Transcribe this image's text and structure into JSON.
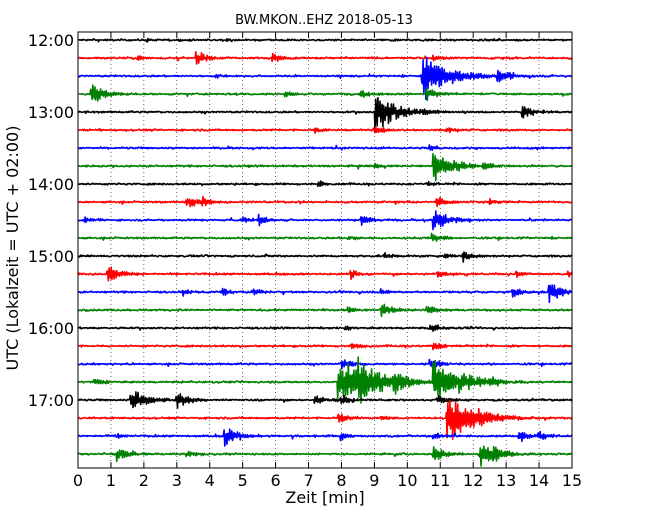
{
  "chart_data": {
    "type": "line",
    "chart_kind": "helicorder (seismogram drum plot)",
    "title": "BW.MKON..EHZ 2018-05-13",
    "xlabel": "Zeit  [min]",
    "ylabel": "UTC (Lokalzeit = UTC + 02:00)",
    "xlim": [
      0,
      15
    ],
    "x_ticks": [
      "0",
      "1",
      "2",
      "3",
      "4",
      "5",
      "6",
      "7",
      "8",
      "9",
      "10",
      "11",
      "12",
      "13",
      "14",
      "15"
    ],
    "y_ticks": [
      "12:00",
      "13:00",
      "14:00",
      "15:00",
      "16:00",
      "17:00"
    ],
    "grid": "vertical dotted lines at each minute",
    "line_interval_minutes": 15,
    "trace_colors": [
      "#000000",
      "#ff0000",
      "#0000ff",
      "#008000"
    ],
    "traces": [
      {
        "start": "12:00",
        "color": "#000000",
        "events": [
          {
            "t": 2.1,
            "amp": 0.2
          },
          {
            "t": 4.5,
            "amp": 0.15
          },
          {
            "t": 9.6,
            "amp": 0.2
          }
        ]
      },
      {
        "start": "12:15",
        "color": "#ff0000",
        "events": [
          {
            "t": 1.8,
            "amp": 0.4
          },
          {
            "t": 3.6,
            "amp": 0.7
          },
          {
            "t": 5.9,
            "amp": 0.5
          },
          {
            "t": 10.8,
            "amp": 0.3
          }
        ]
      },
      {
        "start": "12:30",
        "color": "#0000ff",
        "events": [
          {
            "t": 4.2,
            "amp": 0.2
          },
          {
            "t": 10.45,
            "amp": 2.4
          },
          {
            "t": 12.75,
            "amp": 0.7
          }
        ]
      },
      {
        "start": "12:45",
        "color": "#008000",
        "events": [
          {
            "t": 0.4,
            "amp": 1.0
          },
          {
            "t": 6.3,
            "amp": 0.3
          },
          {
            "t": 8.6,
            "amp": 0.5
          },
          {
            "t": 10.6,
            "amp": 0.6
          }
        ]
      },
      {
        "start": "13:00",
        "color": "#000000",
        "events": [
          {
            "t": 9.05,
            "amp": 1.8
          },
          {
            "t": 10.5,
            "amp": 0.3
          },
          {
            "t": 13.5,
            "amp": 0.7
          }
        ]
      },
      {
        "start": "13:15",
        "color": "#ff0000",
        "events": [
          {
            "t": 7.2,
            "amp": 0.3
          },
          {
            "t": 9.0,
            "amp": 0.5
          },
          {
            "t": 11.2,
            "amp": 0.3
          }
        ]
      },
      {
        "start": "13:30",
        "color": "#0000ff",
        "events": [
          {
            "t": 10.7,
            "amp": 0.3
          }
        ]
      },
      {
        "start": "13:45",
        "color": "#008000",
        "events": [
          {
            "t": 9.0,
            "amp": 0.3
          },
          {
            "t": 10.8,
            "amp": 1.6
          },
          {
            "t": 12.3,
            "amp": 0.4
          }
        ]
      },
      {
        "start": "14:00",
        "color": "#000000",
        "events": [
          {
            "t": 7.3,
            "amp": 0.3
          },
          {
            "t": 10.6,
            "amp": 0.3
          }
        ]
      },
      {
        "start": "14:15",
        "color": "#ff0000",
        "events": [
          {
            "t": 3.3,
            "amp": 0.7
          },
          {
            "t": 3.8,
            "amp": 0.3
          },
          {
            "t": 10.9,
            "amp": 0.5
          },
          {
            "t": 12.5,
            "amp": 0.3
          }
        ]
      },
      {
        "start": "14:30",
        "color": "#0000ff",
        "events": [
          {
            "t": 0.2,
            "amp": 0.3
          },
          {
            "t": 5.0,
            "amp": 0.3
          },
          {
            "t": 5.5,
            "amp": 0.5
          },
          {
            "t": 8.6,
            "amp": 0.5
          },
          {
            "t": 10.8,
            "amp": 1.1
          }
        ]
      },
      {
        "start": "14:45",
        "color": "#008000",
        "events": [
          {
            "t": 8.2,
            "amp": 0.3
          },
          {
            "t": 10.75,
            "amp": 0.5
          }
        ]
      },
      {
        "start": "15:00",
        "color": "#000000",
        "events": [
          {
            "t": 9.3,
            "amp": 0.3
          },
          {
            "t": 11.15,
            "amp": 0.3
          },
          {
            "t": 11.7,
            "amp": 0.6
          }
        ]
      },
      {
        "start": "15:15",
        "color": "#ff0000",
        "events": [
          {
            "t": 0.9,
            "amp": 1.0
          },
          {
            "t": 8.3,
            "amp": 0.4
          },
          {
            "t": 10.9,
            "amp": 0.5
          },
          {
            "t": 13.3,
            "amp": 0.4
          },
          {
            "t": 14.9,
            "amp": 0.4
          }
        ]
      },
      {
        "start": "15:30",
        "color": "#0000ff",
        "events": [
          {
            "t": 3.2,
            "amp": 0.3
          },
          {
            "t": 4.4,
            "amp": 0.4
          },
          {
            "t": 5.3,
            "amp": 0.3
          },
          {
            "t": 9.2,
            "amp": 0.3
          },
          {
            "t": 13.2,
            "amp": 0.6
          },
          {
            "t": 14.3,
            "amp": 1.0
          }
        ]
      },
      {
        "start": "15:45",
        "color": "#008000",
        "events": [
          {
            "t": 8.2,
            "amp": 0.4
          },
          {
            "t": 9.2,
            "amp": 0.7
          },
          {
            "t": 10.6,
            "amp": 0.5
          }
        ]
      },
      {
        "start": "16:00",
        "color": "#000000",
        "events": [
          {
            "t": 8.1,
            "amp": 0.3
          },
          {
            "t": 10.7,
            "amp": 0.5
          }
        ]
      },
      {
        "start": "16:15",
        "color": "#ff0000",
        "events": [
          {
            "t": 8.3,
            "amp": 0.4
          },
          {
            "t": 10.8,
            "amp": 0.5
          }
        ]
      },
      {
        "start": "16:30",
        "color": "#0000ff",
        "events": [
          {
            "t": 8.0,
            "amp": 0.6
          },
          {
            "t": 10.7,
            "amp": 0.6
          }
        ]
      },
      {
        "start": "16:45",
        "color": "#008000",
        "events": [
          {
            "t": 0.5,
            "amp": 0.4
          },
          {
            "t": 7.9,
            "amp": 2.5
          },
          {
            "t": 8.5,
            "amp": 1.6
          },
          {
            "t": 9.6,
            "amp": 0.9
          },
          {
            "t": 10.8,
            "amp": 2.5
          },
          {
            "t": 12.5,
            "amp": 0.4
          }
        ]
      },
      {
        "start": "17:00",
        "color": "#000000",
        "events": [
          {
            "t": 1.6,
            "amp": 1.2
          },
          {
            "t": 3.0,
            "amp": 0.8
          },
          {
            "t": 7.2,
            "amp": 0.5
          },
          {
            "t": 8.0,
            "amp": 0.5
          },
          {
            "t": 10.9,
            "amp": 0.6
          }
        ]
      },
      {
        "start": "17:15",
        "color": "#ff0000",
        "events": [
          {
            "t": 7.9,
            "amp": 0.6
          },
          {
            "t": 9.2,
            "amp": 0.3
          },
          {
            "t": 11.2,
            "amp": 2.5
          },
          {
            "t": 12.2,
            "amp": 0.4
          }
        ]
      },
      {
        "start": "17:30",
        "color": "#0000ff",
        "events": [
          {
            "t": 1.2,
            "amp": 0.3
          },
          {
            "t": 4.45,
            "amp": 1.0
          },
          {
            "t": 8.0,
            "amp": 0.4
          },
          {
            "t": 10.8,
            "amp": 0.4
          },
          {
            "t": 13.4,
            "amp": 0.6
          },
          {
            "t": 14.0,
            "amp": 0.4
          }
        ]
      },
      {
        "start": "17:45",
        "color": "#008000",
        "events": [
          {
            "t": 1.2,
            "amp": 0.7
          },
          {
            "t": 3.3,
            "amp": 0.4
          },
          {
            "t": 10.8,
            "amp": 0.8
          },
          {
            "t": 12.2,
            "amp": 1.2
          },
          {
            "t": 12.6,
            "amp": 0.6
          }
        ]
      }
    ]
  }
}
